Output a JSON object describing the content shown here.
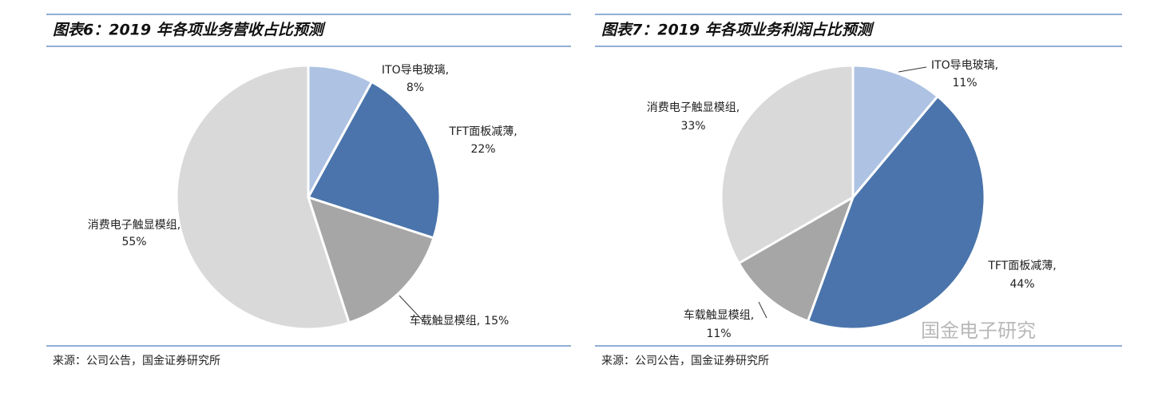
{
  "chart_data": [
    {
      "type": "pie",
      "title": "图表6：2019 年各项业务营收占比预测",
      "categories": [
        "ITO导电玻璃,",
        "TFT面板减薄,",
        "车载触显模组,",
        "消费电子触显模组,"
      ],
      "values": [
        8,
        22,
        15,
        55
      ],
      "value_labels": [
        "8%",
        "22%",
        "15%",
        "55%"
      ],
      "colors": [
        "#aec3e3",
        "#4a74ab",
        "#a6a6a6",
        "#d9d9d9"
      ],
      "source": "来源：公司公告，国金证券研究所"
    },
    {
      "type": "pie",
      "title": "图表7：2019 年各项业务利润占比预测",
      "categories": [
        "ITO导电玻璃,",
        "TFT面板减薄,",
        "车载触显模组,",
        "消费电子触显模组,"
      ],
      "values": [
        11,
        44,
        11,
        33
      ],
      "value_labels": [
        "11%",
        "44%",
        "11%",
        "33%"
      ],
      "colors": [
        "#aec3e3",
        "#4a74ab",
        "#a6a6a6",
        "#d9d9d9"
      ],
      "source": "来源：公司公告，国金证券研究所"
    }
  ],
  "watermark": "国金电子研究"
}
